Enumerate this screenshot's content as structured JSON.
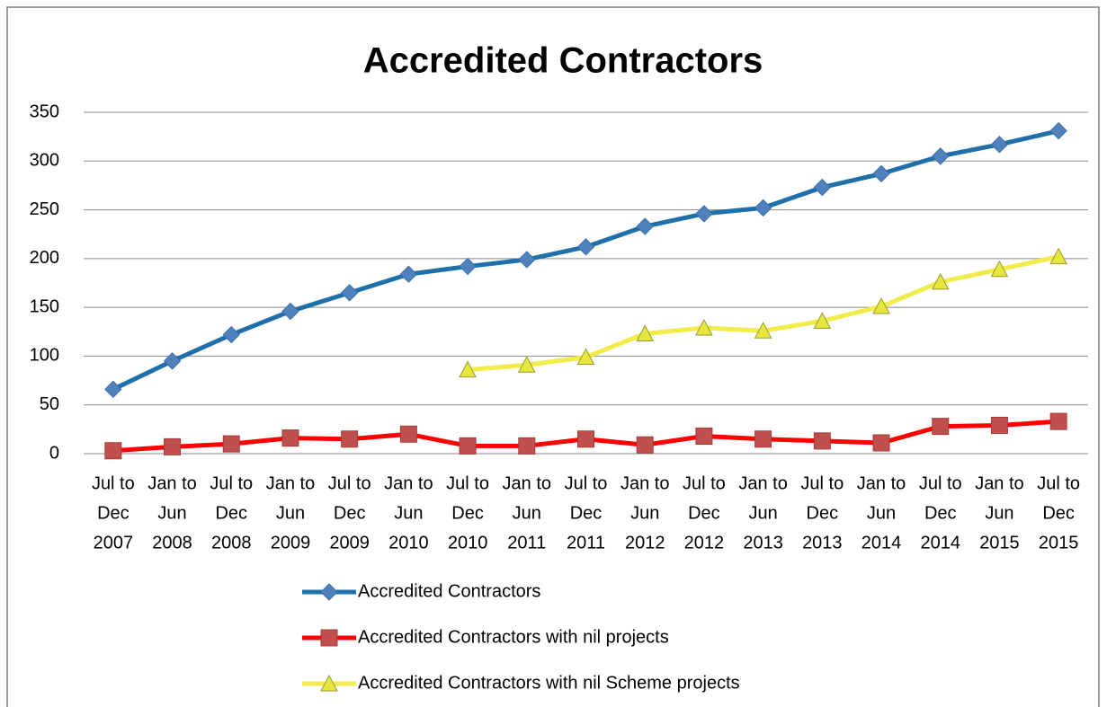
{
  "chart_data": {
    "type": "line",
    "title": "Accredited Contractors",
    "categories": [
      [
        "Jul to",
        "Dec",
        "2007"
      ],
      [
        "Jan to",
        "Jun",
        "2008"
      ],
      [
        "Jul to",
        "Dec",
        "2008"
      ],
      [
        "Jan to",
        "Jun",
        "2009"
      ],
      [
        "Jul to",
        "Dec",
        "2009"
      ],
      [
        "Jan to",
        "Jun",
        "2010"
      ],
      [
        "Jul to",
        "Dec",
        "2010"
      ],
      [
        "Jan to",
        "Jun",
        "2011"
      ],
      [
        "Jul to",
        "Dec",
        "2011"
      ],
      [
        "Jan to",
        "Jun",
        "2012"
      ],
      [
        "Jul to",
        "Dec",
        "2012"
      ],
      [
        "Jan to",
        "Jun",
        "2013"
      ],
      [
        "Jul to",
        "Dec",
        "2013"
      ],
      [
        "Jan to",
        "Jun",
        "2014"
      ],
      [
        "Jul to",
        "Dec",
        "2014"
      ],
      [
        "Jan to",
        "Jun",
        "2015"
      ],
      [
        "Jul to",
        "Dec",
        "2015"
      ]
    ],
    "series": [
      {
        "name": "Accredited Contractors",
        "color": "#1f6faa",
        "marker": "diamond",
        "marker_color": "#4f81bd",
        "values": [
          66,
          95,
          122,
          146,
          165,
          184,
          192,
          199,
          212,
          233,
          246,
          252,
          273,
          287,
          305,
          317,
          331
        ]
      },
      {
        "name": "Accredited Contractors with nil projects",
        "color": "#ff0000",
        "marker": "square",
        "marker_color": "#c0504d",
        "values": [
          3,
          7,
          10,
          16,
          15,
          20,
          8,
          8,
          15,
          9,
          18,
          15,
          13,
          11,
          28,
          29,
          33
        ]
      },
      {
        "name": "Accredited Contractors with nil Scheme projects",
        "color": "#f2ec4a",
        "marker": "triangle",
        "marker_color": "#e6e63c",
        "values": [
          null,
          null,
          null,
          null,
          null,
          null,
          86,
          91,
          99,
          123,
          129,
          126,
          136,
          151,
          176,
          189,
          202
        ]
      }
    ],
    "ylim": [
      0,
      350
    ],
    "yticks": [
      0,
      50,
      100,
      150,
      200,
      250,
      300,
      350
    ],
    "grid": true,
    "legend": "bottom"
  }
}
